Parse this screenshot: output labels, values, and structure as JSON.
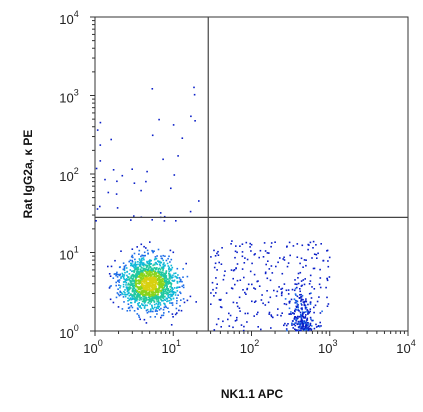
{
  "chart_data": {
    "type": "scatter",
    "subtype": "flow-cytometry-density-dot-plot",
    "xlabel": "NK1.1 APC",
    "ylabel": "Rat IgG2a, κ PE",
    "x_scale": "log",
    "y_scale": "log",
    "xlim": [
      1,
      10000
    ],
    "ylim": [
      1,
      10000
    ],
    "x_ticks": [
      {
        "value": 1,
        "base": "10",
        "exp": "0"
      },
      {
        "value": 10,
        "base": "10",
        "exp": "1"
      },
      {
        "value": 100,
        "base": "10",
        "exp": "2"
      },
      {
        "value": 1000,
        "base": "10",
        "exp": "3"
      },
      {
        "value": 10000,
        "base": "10",
        "exp": "4"
      }
    ],
    "y_ticks": [
      {
        "value": 1,
        "base": "10",
        "exp": "0"
      },
      {
        "value": 10,
        "base": "10",
        "exp": "1"
      },
      {
        "value": 100,
        "base": "10",
        "exp": "2"
      },
      {
        "value": 1000,
        "base": "10",
        "exp": "3"
      },
      {
        "value": 10000,
        "base": "10",
        "exp": "4"
      }
    ],
    "quadrant_gates": {
      "x": 28,
      "y": 28
    },
    "grid": false,
    "legend": "none",
    "populations": [
      {
        "x_range": [
          1,
          25
        ],
        "y_range": [
          1,
          25
        ],
        "x_center": 5,
        "y_center": 4,
        "count": 1500,
        "level": "high"
      },
      {
        "x_range": [
          30,
          1000
        ],
        "y_range": [
          1,
          14
        ],
        "count": 260,
        "level": "low"
      },
      {
        "x_range": [
          250,
          800
        ],
        "y_range": [
          1,
          16
        ],
        "count": 240,
        "level": "medium"
      },
      {
        "x_range": [
          1,
          25
        ],
        "y_range": [
          25,
          1800
        ],
        "count": 45,
        "level": "low"
      }
    ],
    "density_colors": [
      "#0a1fc8",
      "#1f6ee8",
      "#10b8d8",
      "#20c8a0",
      "#8ad41c",
      "#d8d010"
    ]
  }
}
